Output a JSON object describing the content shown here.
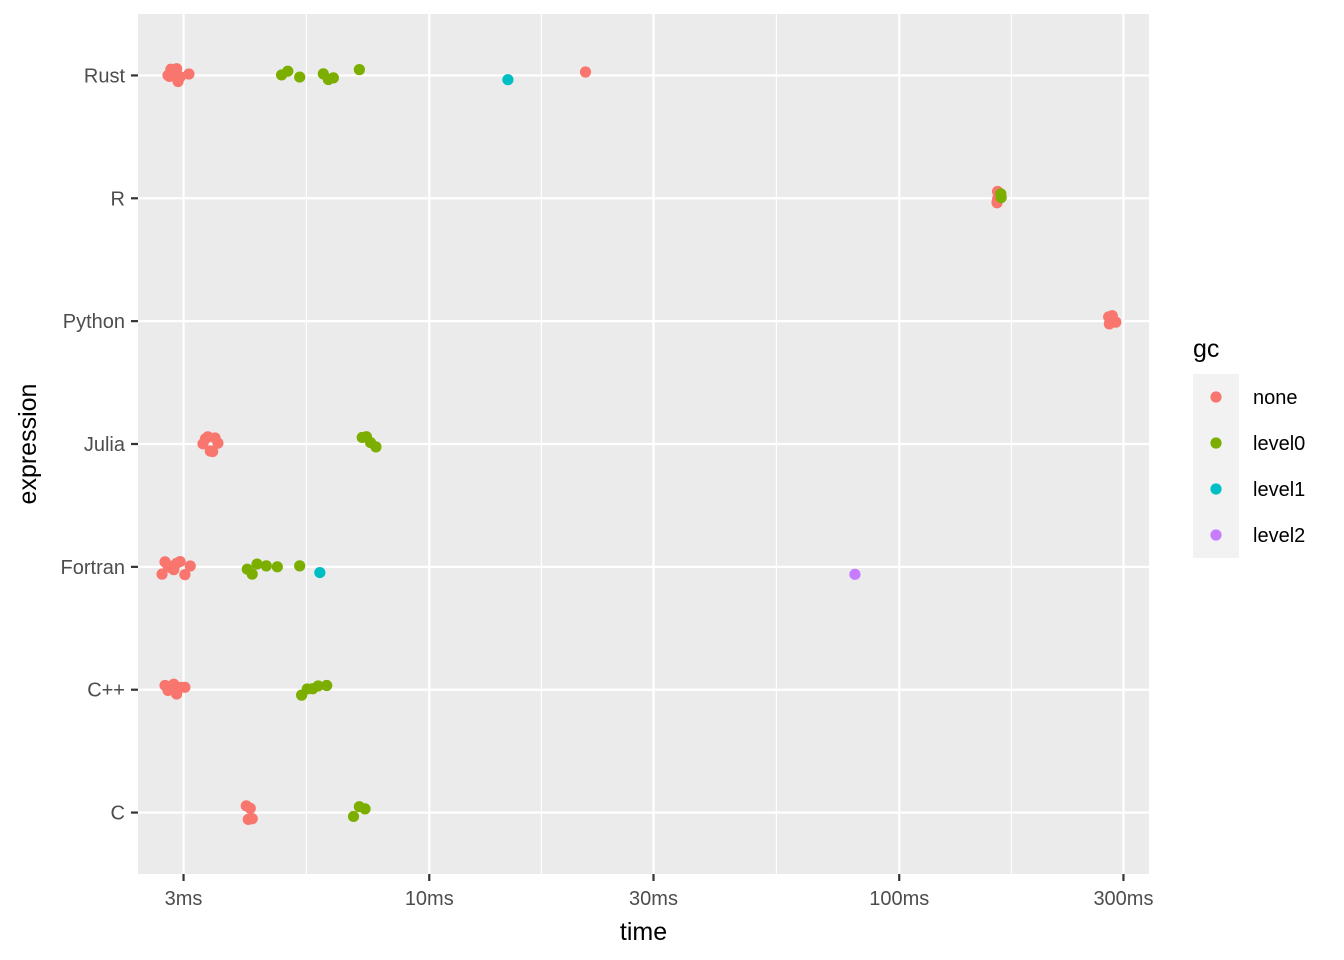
{
  "chart_data": {
    "type": "scatter",
    "title": "",
    "xlabel": "time",
    "ylabel": "expression",
    "x_scale": "log10",
    "xlim": [
      2.4,
      340
    ],
    "x_ticks": [
      3,
      10,
      30,
      100,
      300
    ],
    "x_tick_labels": [
      "3ms",
      "10ms",
      "30ms",
      "100ms",
      "300ms"
    ],
    "categories": [
      "C",
      "C++",
      "Fortran",
      "Julia",
      "Python",
      "R",
      "Rust"
    ],
    "grid": true,
    "legend": {
      "title": "gc",
      "position": "right",
      "entries": [
        {
          "label": "none",
          "color": "#F8766D"
        },
        {
          "label": "level0",
          "color": "#7CAE00"
        },
        {
          "label": "level1",
          "color": "#00BFC4"
        },
        {
          "label": "level2",
          "color": "#C77CFF"
        }
      ]
    },
    "series": [
      {
        "name": "none",
        "color": "#F8766D",
        "points": [
          {
            "category": "Rust",
            "x": [
              2.78,
              2.8,
              2.82,
              2.84,
              2.86,
              2.88,
              2.9,
              2.92,
              2.95,
              3.08,
              21.5
            ]
          },
          {
            "category": "R",
            "x": [
              161.5,
              161.7,
              161.9,
              162.1
            ]
          },
          {
            "category": "Python",
            "x": [
              279,
              280,
              284,
              289
            ]
          },
          {
            "category": "Julia",
            "x": [
              3.3,
              3.34,
              3.38,
              3.42,
              3.46,
              3.5,
              3.55
            ]
          },
          {
            "category": "Fortran",
            "x": [
              2.7,
              2.74,
              2.78,
              2.82,
              2.86,
              2.9,
              2.95,
              3.02,
              3.1
            ]
          },
          {
            "category": "C++",
            "x": [
              2.74,
              2.78,
              2.82,
              2.86,
              2.9,
              2.96,
              3.02
            ]
          },
          {
            "category": "C",
            "x": [
              4.08,
              4.12,
              4.16,
              4.2
            ]
          }
        ]
      },
      {
        "name": "level0",
        "color": "#7CAE00",
        "points": [
          {
            "category": "Rust",
            "x": [
              4.85,
              5.0,
              5.3,
              5.95,
              6.1,
              6.25,
              7.1
            ]
          },
          {
            "category": "R",
            "x": [
              164.5,
              164.8
            ]
          },
          {
            "category": "Julia",
            "x": [
              7.2,
              7.35,
              7.5,
              7.7
            ]
          },
          {
            "category": "Fortran",
            "x": [
              4.1,
              4.2,
              4.3,
              4.5,
              4.75,
              5.3
            ]
          },
          {
            "category": "C++",
            "x": [
              5.35,
              5.5,
              5.65,
              5.8,
              6.05
            ]
          },
          {
            "category": "C",
            "x": [
              6.9,
              7.1,
              7.3
            ]
          }
        ]
      },
      {
        "name": "level1",
        "color": "#00BFC4",
        "points": [
          {
            "category": "Rust",
            "x": [
              14.7
            ]
          },
          {
            "category": "Fortran",
            "x": [
              5.85
            ]
          }
        ]
      },
      {
        "name": "level2",
        "color": "#C77CFF",
        "points": [
          {
            "category": "Fortran",
            "x": [
              80.5
            ]
          }
        ]
      }
    ]
  }
}
